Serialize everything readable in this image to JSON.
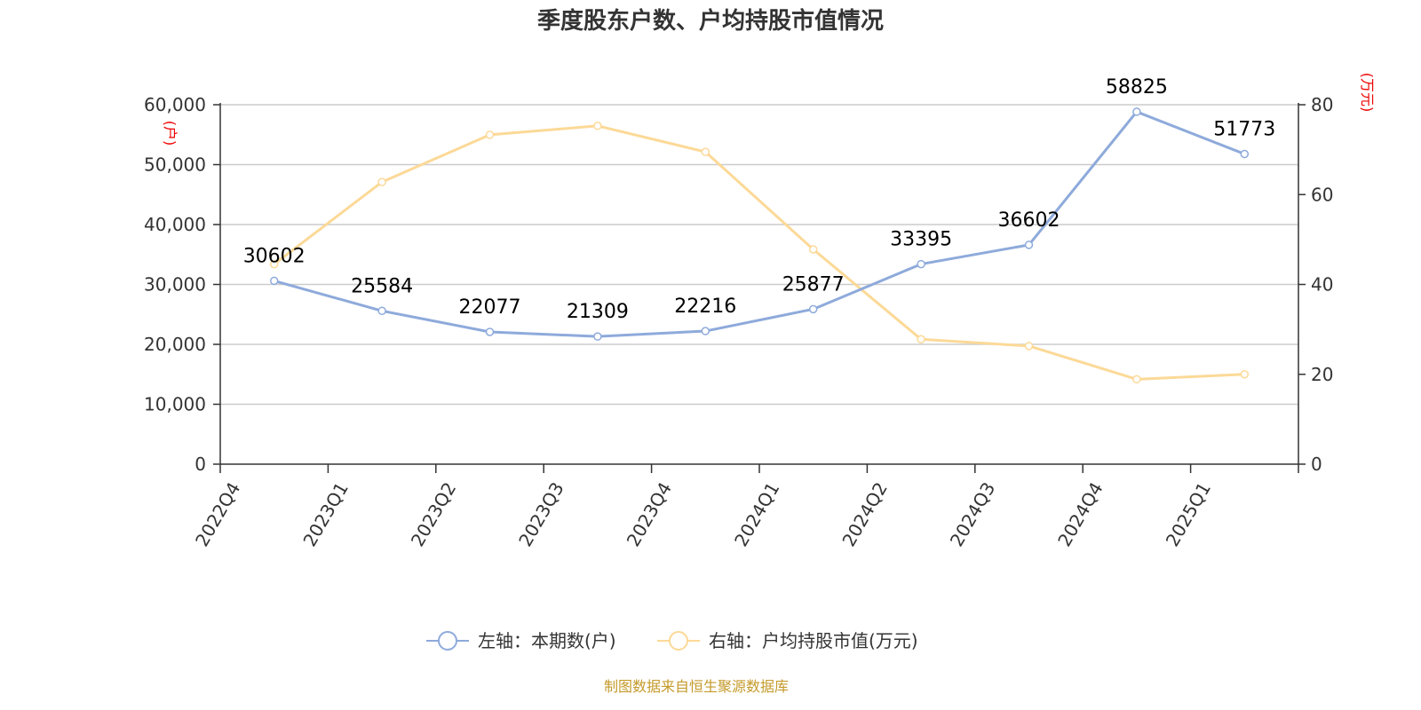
{
  "chart_data": {
    "type": "line",
    "title": "季度股东户数、户均持股市值情况",
    "categories": [
      "2022Q4",
      "2023Q1",
      "2023Q2",
      "2023Q3",
      "2023Q4",
      "2024Q1",
      "2024Q2",
      "2024Q3",
      "2024Q4",
      "2025Q1"
    ],
    "left_axis": {
      "unit": "(户)",
      "range": [
        0,
        60000
      ],
      "ticks": [
        "0",
        "10,000",
        "20,000",
        "30,000",
        "40,000",
        "50,000",
        "60,000"
      ],
      "tick_values": [
        0,
        10000,
        20000,
        30000,
        40000,
        50000,
        60000
      ]
    },
    "right_axis": {
      "unit": "(万元)",
      "range": [
        0,
        80
      ],
      "ticks": [
        "0",
        "20",
        "40",
        "60",
        "80"
      ],
      "tick_values": [
        0,
        20,
        40,
        60,
        80
      ]
    },
    "series": [
      {
        "name": "左轴：本期数(户)",
        "axis": "left",
        "color": "#8eaadb",
        "values": [
          30602,
          25584,
          22077,
          21309,
          22216,
          25877,
          33395,
          36602,
          58825,
          51773
        ],
        "labels": [
          "30602",
          "25584",
          "22077",
          "21309",
          "22216",
          "25877",
          "33395",
          "36602",
          "58825",
          "51773"
        ]
      },
      {
        "name": "右轴：户均持股市值(万元)",
        "axis": "right",
        "color": "#fcd997",
        "values": [
          44.5,
          62.8,
          73.3,
          75.3,
          69.5,
          47.8,
          27.8,
          26.3,
          18.9,
          20.0
        ]
      }
    ],
    "grid": true,
    "legend_position": "bottom-center",
    "unit_color": "#ee0000"
  },
  "source": {
    "text": "制图数据来自恒生聚源数据库",
    "color": "#c49a2a"
  }
}
